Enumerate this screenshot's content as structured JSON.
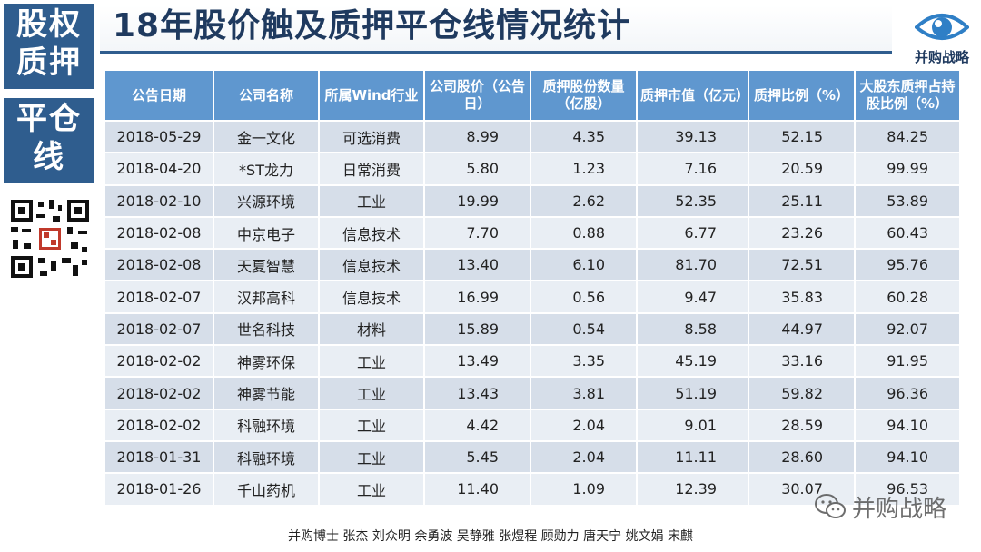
{
  "side": {
    "top_lines": [
      "股权",
      "质押"
    ],
    "mid_lines": [
      "平仓",
      "线"
    ]
  },
  "title": "18年股价触及质押平仓线情况统计",
  "logo": {
    "text": "并购战略",
    "icon": "eye-icon",
    "color": "#2f7fc6"
  },
  "qr": {
    "icon": "qr-code-icon"
  },
  "table": {
    "headers": [
      "公告日期",
      "公司名称",
      "所属Wind行业",
      "公司股价（公告日）",
      "质押股份数量（亿股）",
      "质押市值（亿元）",
      "质押比例（%）",
      "大股东质押占持股比例（%）"
    ],
    "rows": [
      [
        "2018-05-29",
        "金一文化",
        "可选消费",
        "8.99",
        "4.35",
        "39.13",
        "52.15",
        "84.25"
      ],
      [
        "2018-04-20",
        "*ST龙力",
        "日常消费",
        "5.80",
        "1.23",
        "7.16",
        "20.59",
        "99.99"
      ],
      [
        "2018-02-10",
        "兴源环境",
        "工业",
        "19.99",
        "2.62",
        "52.35",
        "25.11",
        "53.89"
      ],
      [
        "2018-02-08",
        "中京电子",
        "信息技术",
        "7.70",
        "0.88",
        "6.77",
        "23.26",
        "60.43"
      ],
      [
        "2018-02-08",
        "天夏智慧",
        "信息技术",
        "13.40",
        "6.10",
        "81.70",
        "72.51",
        "95.76"
      ],
      [
        "2018-02-07",
        "汉邦高科",
        "信息技术",
        "16.99",
        "0.56",
        "9.47",
        "35.83",
        "60.28"
      ],
      [
        "2018-02-07",
        "世名科技",
        "材料",
        "15.89",
        "0.54",
        "8.58",
        "44.97",
        "92.07"
      ],
      [
        "2018-02-02",
        "神雾环保",
        "工业",
        "13.49",
        "3.35",
        "45.19",
        "33.16",
        "91.95"
      ],
      [
        "2018-02-02",
        "神雾节能",
        "工业",
        "13.43",
        "3.81",
        "51.19",
        "59.82",
        "96.36"
      ],
      [
        "2018-02-02",
        "科融环境",
        "工业",
        "4.42",
        "2.04",
        "9.01",
        "28.59",
        "94.10"
      ],
      [
        "2018-01-31",
        "科融环境",
        "工业",
        "5.45",
        "2.04",
        "11.11",
        "28.60",
        "94.10"
      ],
      [
        "2018-01-26",
        "千山药机",
        "工业",
        "11.40",
        "1.09",
        "12.39",
        "30.07",
        "96.53"
      ]
    ]
  },
  "footer": "并购博士 张杰 刘众明 余勇波 吴静雅 张煜程  顾勋力 唐天宁 姚文娟 宋麒",
  "watermark": {
    "text": "并购战略",
    "icon": "wechat-icon"
  },
  "colors": {
    "brand_blue": "#2f5d8e",
    "header_blue": "#5f97cf",
    "row_odd": "#d6dee9",
    "row_even": "#e9eef4"
  }
}
